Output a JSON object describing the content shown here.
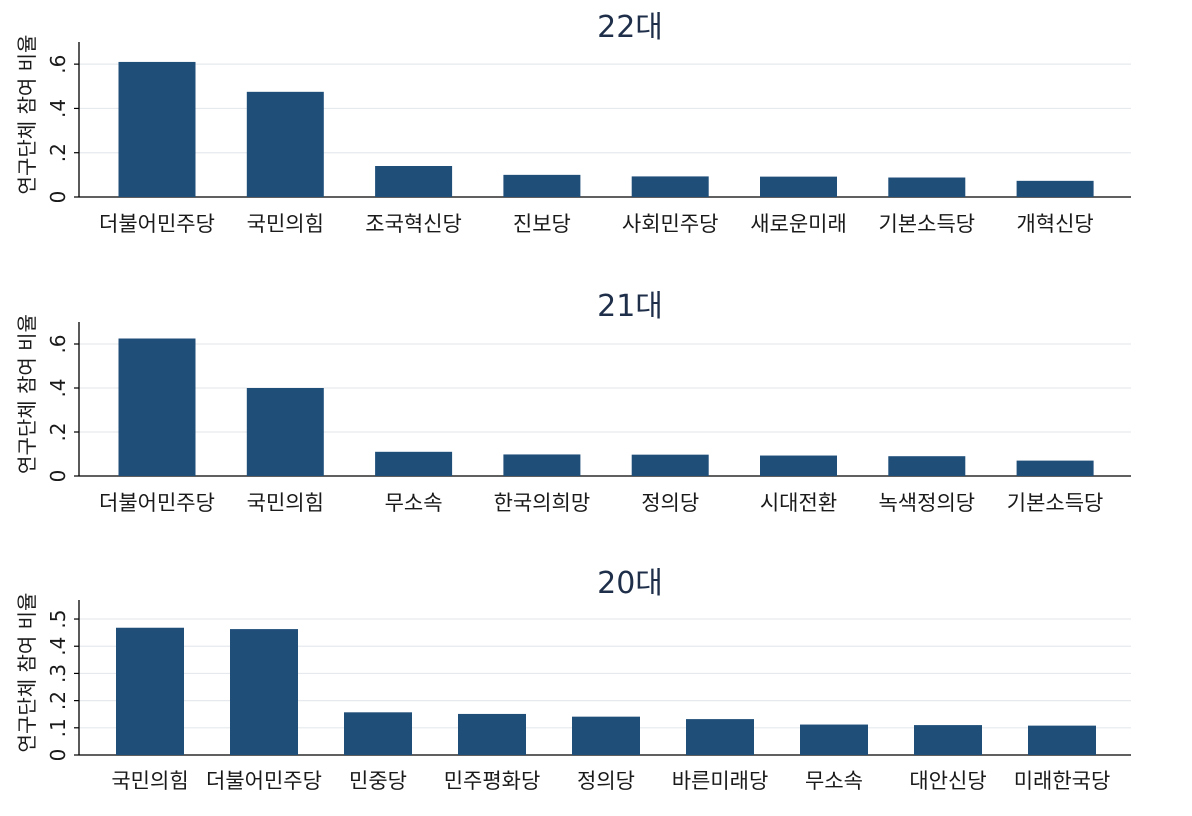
{
  "chart_data": [
    {
      "type": "bar",
      "title": "22대",
      "ylabel": "연구단체 참여 비율",
      "categories": [
        "더불어민주당",
        "국민의힘",
        "조국혁신당",
        "진보당",
        "사회민주당",
        "새로운미래",
        "기본소득당",
        "개혁신당"
      ],
      "values": [
        0.61,
        0.475,
        0.14,
        0.1,
        0.093,
        0.092,
        0.088,
        0.073
      ],
      "ylim": [
        0,
        0.7
      ],
      "yticks": [
        0,
        0.2,
        0.4,
        0.6
      ],
      "ytick_labels": [
        "0",
        ".2",
        ".4",
        ".6"
      ],
      "grid": true,
      "bar_color": "#1f4e79"
    },
    {
      "type": "bar",
      "title": "21대",
      "ylabel": "연구단체 참여 비율",
      "categories": [
        "더불어민주당",
        "국민의힘",
        "무소속",
        "한국의희망",
        "정의당",
        "시대전환",
        "녹색정의당",
        "기본소득당"
      ],
      "values": [
        0.625,
        0.4,
        0.11,
        0.098,
        0.097,
        0.093,
        0.09,
        0.07
      ],
      "ylim": [
        0,
        0.7
      ],
      "yticks": [
        0,
        0.2,
        0.4,
        0.6
      ],
      "ytick_labels": [
        "0",
        ".2",
        ".4",
        ".6"
      ],
      "grid": true,
      "bar_color": "#1f4e79"
    },
    {
      "type": "bar",
      "title": "20대",
      "ylabel": "연구단체 참여 비율",
      "categories": [
        "국민의힘",
        "더불어민주당",
        "민중당",
        "민주평화당",
        "정의당",
        "바른미래당",
        "무소속",
        "대안신당",
        "미래한국당"
      ],
      "values": [
        0.468,
        0.463,
        0.157,
        0.151,
        0.141,
        0.132,
        0.112,
        0.11,
        0.108
      ],
      "ylim": [
        0,
        0.57
      ],
      "yticks": [
        0,
        0.1,
        0.2,
        0.3,
        0.4,
        0.5
      ],
      "ytick_labels": [
        "0",
        ".1",
        ".2",
        ".3",
        ".4",
        ".5"
      ],
      "grid": true,
      "bar_color": "#1f4e79"
    }
  ]
}
